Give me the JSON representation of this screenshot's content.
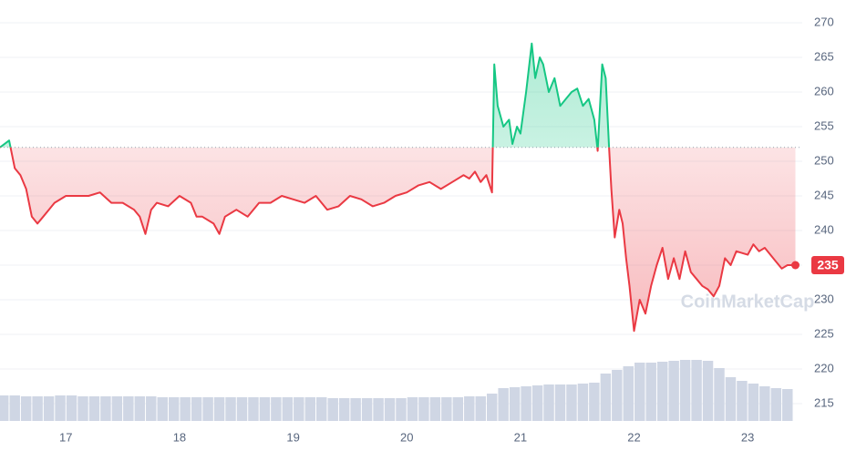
{
  "chart_data": {
    "type": "line",
    "baseline": 252,
    "colors": {
      "above": "#16c784",
      "below": "#ea3943",
      "volume": "#cfd6e4"
    },
    "watermark": "CoinMarketCap",
    "xlim": [
      16.42,
      23.44
    ],
    "xticks": [
      17,
      18,
      19,
      20,
      21,
      22,
      23
    ],
    "ylim": [
      212.5,
      272.5
    ],
    "yticks": [
      215,
      220,
      225,
      230,
      235,
      240,
      245,
      250,
      255,
      260,
      265,
      270
    ],
    "grid": true,
    "x": [
      16.42,
      16.5,
      16.55,
      16.6,
      16.65,
      16.7,
      16.75,
      16.8,
      16.85,
      16.9,
      17.0,
      17.1,
      17.2,
      17.3,
      17.4,
      17.5,
      17.6,
      17.65,
      17.7,
      17.75,
      17.8,
      17.9,
      18.0,
      18.1,
      18.15,
      18.2,
      18.3,
      18.35,
      18.4,
      18.5,
      18.6,
      18.7,
      18.8,
      18.9,
      19.0,
      19.1,
      19.2,
      19.3,
      19.4,
      19.5,
      19.6,
      19.7,
      19.8,
      19.9,
      20.0,
      20.1,
      20.2,
      20.3,
      20.4,
      20.5,
      20.55,
      20.6,
      20.65,
      20.7,
      20.75,
      20.77,
      20.8,
      20.85,
      20.9,
      20.93,
      20.97,
      21.0,
      21.05,
      21.1,
      21.13,
      21.17,
      21.2,
      21.25,
      21.3,
      21.35,
      21.4,
      21.45,
      21.5,
      21.55,
      21.6,
      21.65,
      21.68,
      21.72,
      21.75,
      21.78,
      21.8,
      21.83,
      21.87,
      21.9,
      21.93,
      21.96,
      22.0,
      22.05,
      22.1,
      22.15,
      22.2,
      22.25,
      22.3,
      22.35,
      22.4,
      22.45,
      22.5,
      22.55,
      22.6,
      22.65,
      22.7,
      22.75,
      22.8,
      22.85,
      22.9,
      23.0,
      23.05,
      23.1,
      23.15,
      23.2,
      23.25,
      23.3,
      23.35,
      23.42
    ],
    "values": [
      252,
      253,
      249,
      248,
      246,
      242,
      241,
      242,
      243,
      244,
      245,
      245,
      245,
      245.5,
      244,
      244,
      243,
      242,
      239.5,
      243,
      244,
      243.5,
      245,
      244,
      242,
      242,
      241,
      239.5,
      242,
      243,
      242,
      244,
      244,
      245,
      244.5,
      244,
      245,
      243,
      243.5,
      245,
      244.5,
      243.5,
      244,
      245,
      245.5,
      246.5,
      247,
      246,
      247,
      248,
      247.5,
      248.5,
      247,
      248,
      245.5,
      264,
      258,
      255,
      256,
      252.5,
      255,
      254,
      260,
      267,
      262,
      265,
      264,
      260,
      262,
      258,
      259,
      260,
      260.5,
      258,
      259,
      256,
      251.5,
      264,
      262,
      252,
      246,
      239,
      243,
      241,
      236,
      232,
      225.5,
      230,
      228,
      232,
      235,
      237.5,
      233,
      236,
      233,
      237,
      234,
      233,
      232,
      231.5,
      230.5,
      232,
      236,
      235,
      237,
      236.5,
      238,
      237,
      237.5,
      236.5,
      235.5,
      234.5,
      235,
      235
    ],
    "volume": {
      "x": [
        16.45,
        16.55,
        16.65,
        16.75,
        16.85,
        16.95,
        17.05,
        17.15,
        17.25,
        17.35,
        17.45,
        17.55,
        17.65,
        17.75,
        17.85,
        17.95,
        18.05,
        18.15,
        18.25,
        18.35,
        18.45,
        18.55,
        18.65,
        18.75,
        18.85,
        18.95,
        19.05,
        19.15,
        19.25,
        19.35,
        19.45,
        19.55,
        19.65,
        19.75,
        19.85,
        19.95,
        20.05,
        20.15,
        20.25,
        20.35,
        20.45,
        20.55,
        20.65,
        20.75,
        20.85,
        20.95,
        21.05,
        21.15,
        21.25,
        21.35,
        21.45,
        21.55,
        21.65,
        21.75,
        21.85,
        21.95,
        22.05,
        22.15,
        22.25,
        22.35,
        22.45,
        22.55,
        22.65,
        22.75,
        22.85,
        22.95,
        23.05,
        23.15,
        23.25,
        23.35
      ],
      "values": [
        28,
        28,
        27,
        27,
        27,
        28,
        28,
        27,
        27,
        27,
        27,
        27,
        27,
        27,
        26,
        26,
        26,
        26,
        26,
        26,
        26,
        26,
        26,
        26,
        26,
        26,
        26,
        26,
        26,
        25,
        25,
        25,
        25,
        25,
        25,
        25,
        26,
        26,
        26,
        26,
        26,
        27,
        27,
        30,
        36,
        37,
        38,
        39,
        40,
        40,
        40,
        41,
        42,
        52,
        56,
        60,
        64,
        64,
        65,
        66,
        67,
        67,
        66,
        58,
        48,
        44,
        41,
        38,
        36,
        35
      ]
    }
  }
}
